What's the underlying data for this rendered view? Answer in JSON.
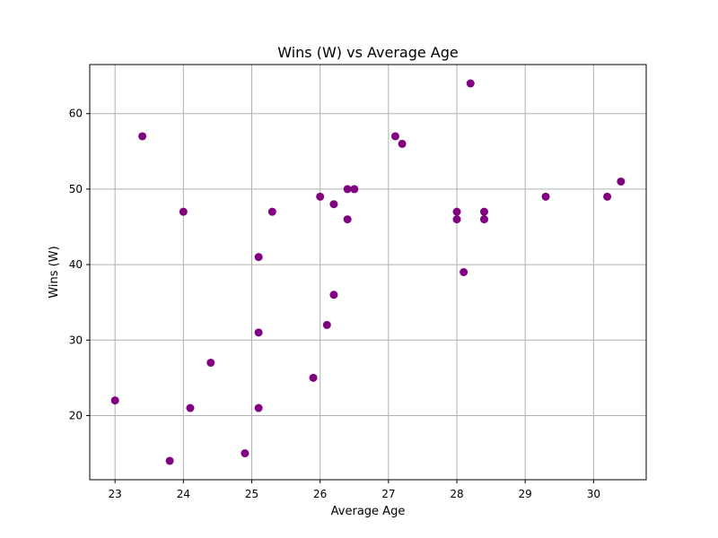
{
  "chart_data": {
    "type": "scatter",
    "title": "Wins (W) vs Average Age",
    "xlabel": "Average Age",
    "ylabel": "Wins (W)",
    "xlim": [
      22.63,
      30.77
    ],
    "ylim": [
      11.5,
      66.5
    ],
    "xticks": [
      23,
      24,
      25,
      26,
      27,
      28,
      29,
      30
    ],
    "yticks": [
      20,
      30,
      40,
      50,
      60
    ],
    "grid": true,
    "marker_color": "#800080",
    "series": [
      {
        "points": [
          {
            "x": 23.0,
            "y": 22
          },
          {
            "x": 23.4,
            "y": 57
          },
          {
            "x": 23.8,
            "y": 14
          },
          {
            "x": 24.0,
            "y": 47
          },
          {
            "x": 24.1,
            "y": 21
          },
          {
            "x": 24.4,
            "y": 27
          },
          {
            "x": 24.9,
            "y": 15
          },
          {
            "x": 25.1,
            "y": 41
          },
          {
            "x": 25.1,
            "y": 31
          },
          {
            "x": 25.1,
            "y": 21
          },
          {
            "x": 25.3,
            "y": 47
          },
          {
            "x": 25.9,
            "y": 25
          },
          {
            "x": 26.0,
            "y": 49
          },
          {
            "x": 26.1,
            "y": 32
          },
          {
            "x": 26.2,
            "y": 48
          },
          {
            "x": 26.2,
            "y": 36
          },
          {
            "x": 26.4,
            "y": 50
          },
          {
            "x": 26.4,
            "y": 46
          },
          {
            "x": 26.5,
            "y": 50
          },
          {
            "x": 27.1,
            "y": 57
          },
          {
            "x": 27.2,
            "y": 56
          },
          {
            "x": 28.0,
            "y": 47
          },
          {
            "x": 28.0,
            "y": 46
          },
          {
            "x": 28.1,
            "y": 39
          },
          {
            "x": 28.2,
            "y": 64
          },
          {
            "x": 28.4,
            "y": 47
          },
          {
            "x": 28.4,
            "y": 46
          },
          {
            "x": 29.3,
            "y": 49
          },
          {
            "x": 30.2,
            "y": 49
          },
          {
            "x": 30.4,
            "y": 51
          }
        ]
      }
    ]
  }
}
